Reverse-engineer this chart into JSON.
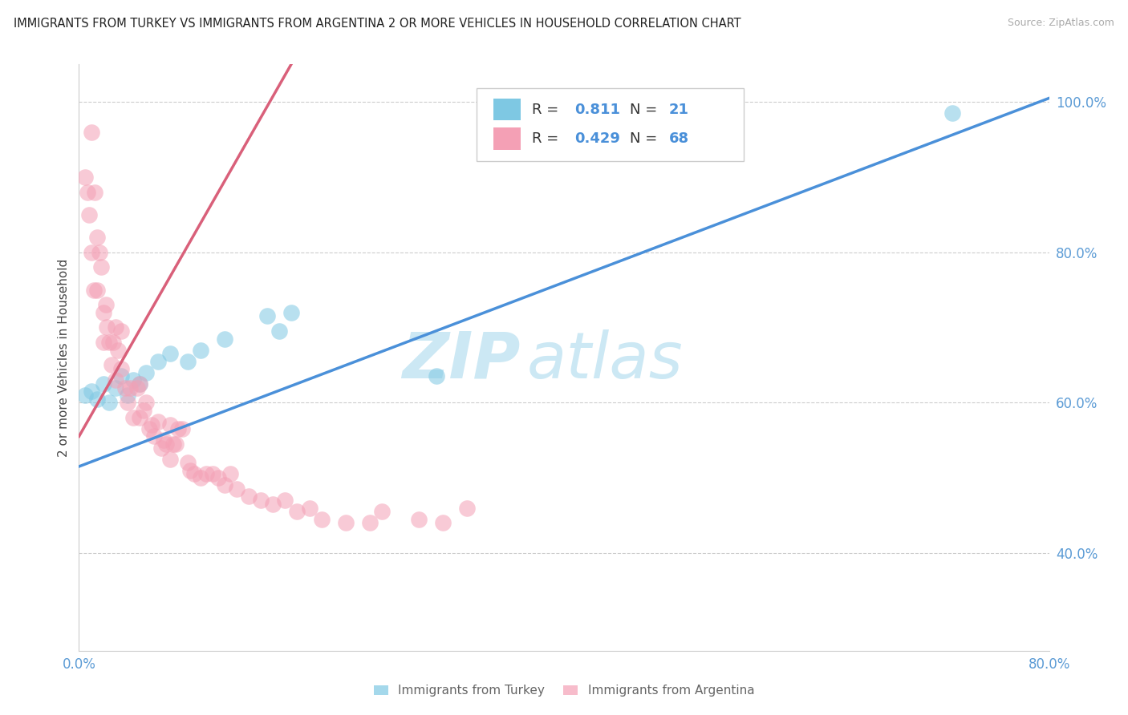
{
  "title": "IMMIGRANTS FROM TURKEY VS IMMIGRANTS FROM ARGENTINA 2 OR MORE VEHICLES IN HOUSEHOLD CORRELATION CHART",
  "source": "Source: ZipAtlas.com",
  "ylabel": "2 or more Vehicles in Household",
  "r_turkey": 0.811,
  "n_turkey": 21,
  "r_argentina": 0.429,
  "n_argentina": 68,
  "turkey_color": "#7ec8e3",
  "argentina_color": "#f4a0b5",
  "turkey_line_color": "#4a90d9",
  "argentina_line_color": "#d9607a",
  "background_color": "#ffffff",
  "watermark_zip": "ZIP",
  "watermark_atlas": "atlas",
  "watermark_color": "#cce8f4",
  "xlim": [
    0.0,
    0.8
  ],
  "ylim": [
    0.27,
    1.05
  ],
  "x_ticks": [
    0.0,
    0.2,
    0.4,
    0.6,
    0.8
  ],
  "x_tick_labels": [
    "0.0%",
    "",
    "",
    "",
    "80.0%"
  ],
  "y_ticks": [
    0.4,
    0.6,
    0.8,
    1.0
  ],
  "y_tick_labels": [
    "40.0%",
    "60.0%",
    "80.0%",
    "100.0%"
  ],
  "turkey_line_x": [
    0.0,
    0.8
  ],
  "turkey_line_y": [
    0.515,
    1.005
  ],
  "argentina_line_x": [
    0.0,
    0.175
  ],
  "argentina_line_y": [
    0.555,
    1.05
  ],
  "turkey_scatter_x": [
    0.005,
    0.01,
    0.015,
    0.02,
    0.025,
    0.03,
    0.035,
    0.04,
    0.045,
    0.05,
    0.055,
    0.065,
    0.075,
    0.09,
    0.1,
    0.12,
    0.155,
    0.165,
    0.175,
    0.295,
    0.72
  ],
  "turkey_scatter_y": [
    0.61,
    0.615,
    0.605,
    0.625,
    0.6,
    0.62,
    0.635,
    0.61,
    0.63,
    0.625,
    0.64,
    0.655,
    0.665,
    0.655,
    0.67,
    0.685,
    0.715,
    0.695,
    0.72,
    0.635,
    0.985
  ],
  "argentina_scatter_x": [
    0.005,
    0.007,
    0.008,
    0.01,
    0.01,
    0.012,
    0.013,
    0.015,
    0.015,
    0.017,
    0.018,
    0.02,
    0.02,
    0.022,
    0.023,
    0.025,
    0.027,
    0.028,
    0.03,
    0.03,
    0.032,
    0.035,
    0.035,
    0.038,
    0.04,
    0.042,
    0.045,
    0.048,
    0.05,
    0.05,
    0.053,
    0.055,
    0.058,
    0.06,
    0.062,
    0.065,
    0.068,
    0.07,
    0.072,
    0.075,
    0.075,
    0.078,
    0.08,
    0.082,
    0.085,
    0.09,
    0.092,
    0.095,
    0.1,
    0.105,
    0.11,
    0.115,
    0.12,
    0.125,
    0.13,
    0.14,
    0.15,
    0.16,
    0.17,
    0.18,
    0.19,
    0.2,
    0.22,
    0.24,
    0.25,
    0.28,
    0.3,
    0.32
  ],
  "argentina_scatter_y": [
    0.9,
    0.88,
    0.85,
    0.96,
    0.8,
    0.75,
    0.88,
    0.82,
    0.75,
    0.8,
    0.78,
    0.72,
    0.68,
    0.73,
    0.7,
    0.68,
    0.65,
    0.68,
    0.63,
    0.7,
    0.67,
    0.645,
    0.695,
    0.62,
    0.6,
    0.62,
    0.58,
    0.62,
    0.58,
    0.625,
    0.59,
    0.6,
    0.565,
    0.57,
    0.555,
    0.575,
    0.54,
    0.55,
    0.545,
    0.57,
    0.525,
    0.545,
    0.545,
    0.565,
    0.565,
    0.52,
    0.51,
    0.505,
    0.5,
    0.505,
    0.505,
    0.5,
    0.49,
    0.505,
    0.485,
    0.475,
    0.47,
    0.465,
    0.47,
    0.455,
    0.46,
    0.445,
    0.44,
    0.44,
    0.455,
    0.445,
    0.44,
    0.46
  ]
}
